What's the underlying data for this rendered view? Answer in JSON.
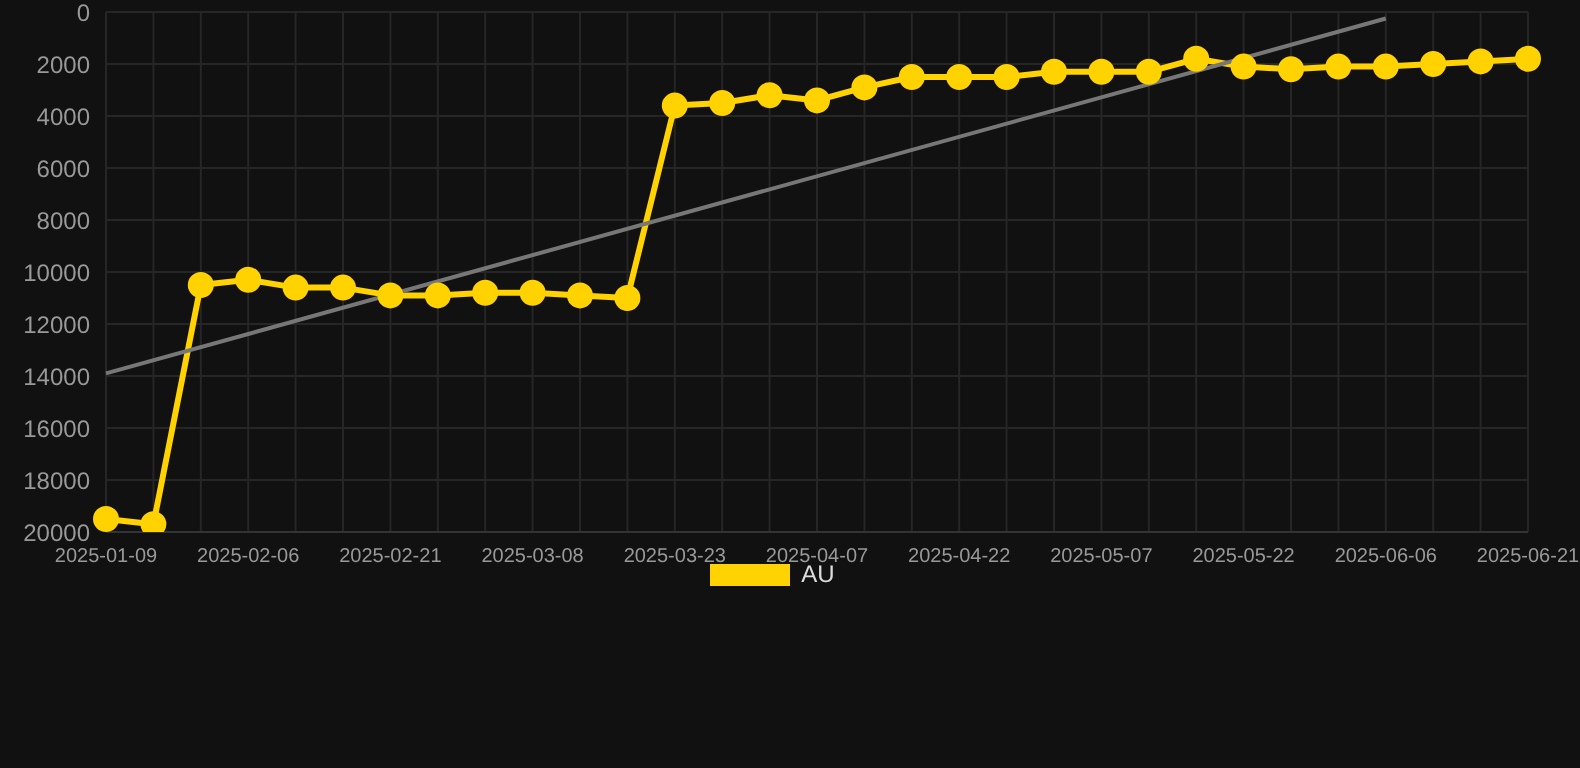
{
  "chart_data": {
    "type": "line",
    "categories": [
      "2025-01-09",
      null,
      null,
      "2025-02-06",
      null,
      null,
      "2025-02-21",
      null,
      null,
      "2025-03-08",
      null,
      null,
      "2025-03-23",
      null,
      null,
      "2025-04-07",
      null,
      null,
      "2025-04-22",
      null,
      null,
      "2025-05-07",
      null,
      null,
      "2025-05-22",
      null,
      null,
      "2025-06-06",
      null,
      null,
      "2025-06-21"
    ],
    "series": [
      {
        "name": "AU",
        "color": "#ffd200",
        "values": [
          19500,
          19700,
          10500,
          10300,
          10600,
          10600,
          10900,
          10900,
          10800,
          10800,
          10900,
          11000,
          3600,
          3500,
          3200,
          3400,
          2900,
          2500,
          2500,
          2500,
          2300,
          2300,
          2300,
          1800,
          2100,
          2200,
          2100,
          2100,
          2000,
          1900,
          1800
        ]
      },
      {
        "type": "line",
        "color": "#777777",
        "marker": "none",
        "values": [
          13900,
          null,
          null,
          null,
          null,
          null,
          null,
          null,
          null,
          null,
          null,
          null,
          null,
          null,
          null,
          null,
          null,
          null,
          null,
          null,
          null,
          null,
          null,
          null,
          null,
          null,
          null,
          250,
          null,
          null,
          null
        ]
      }
    ],
    "ylim": [
      20000,
      0
    ],
    "yticks": [
      0,
      2000,
      4000,
      6000,
      8000,
      10000,
      12000,
      14000,
      16000,
      18000,
      20000
    ],
    "grid": true,
    "legend": "bottom",
    "marker": "circle",
    "line_style": "solid"
  }
}
